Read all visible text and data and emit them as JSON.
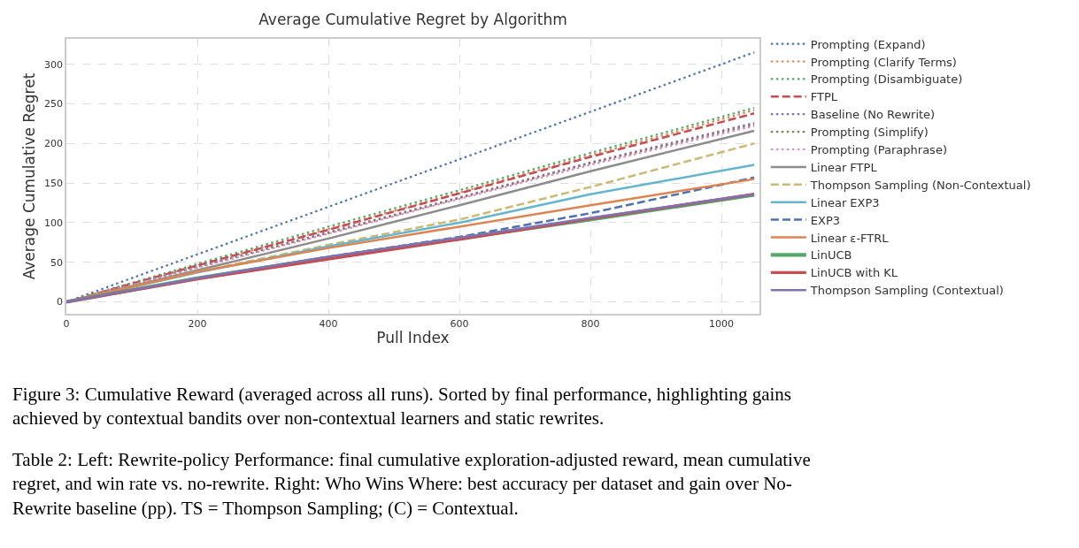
{
  "chart_data": {
    "type": "line",
    "title": "Average Cumulative Regret by Algorithm",
    "xlabel": "Pull Index",
    "ylabel": "Average Cumulative Regret",
    "x": [
      0,
      200,
      400,
      600,
      800,
      1050
    ],
    "series": [
      {
        "name": "Prompting (Expand)",
        "color": "#4c72b0",
        "line_style": "dotted",
        "values": [
          0,
          60,
          120,
          180,
          240,
          315
        ]
      },
      {
        "name": "Prompting (Clarify Terms)",
        "color": "#dd8452",
        "line_style": "dotted",
        "values": [
          0,
          46,
          92,
          138,
          185,
          242
        ]
      },
      {
        "name": "Prompting (Disambiguate)",
        "color": "#55a868",
        "line_style": "dotted",
        "values": [
          0,
          48,
          95,
          141,
          188,
          245
        ]
      },
      {
        "name": "FTPL",
        "color": "#c44e52",
        "line_style": "dashed",
        "values": [
          0,
          46,
          91,
          137,
          183,
          238
        ]
      },
      {
        "name": "Baseline (No Rewrite)",
        "color": "#8172b3",
        "line_style": "dotted",
        "values": [
          0,
          44,
          88,
          132,
          176,
          226
        ]
      },
      {
        "name": "Prompting (Simplify)",
        "color": "#937860",
        "line_style": "dotted",
        "values": [
          0,
          44,
          87,
          131,
          175,
          224
        ]
      },
      {
        "name": "Prompting (Paraphrase)",
        "color": "#da8bc3",
        "line_style": "dotted",
        "values": [
          0,
          43,
          86,
          130,
          173,
          222
        ]
      },
      {
        "name": "Linear FTPL",
        "color": "#8c8c8c",
        "line_style": "solid",
        "values": [
          0,
          40,
          80,
          122,
          165,
          216
        ]
      },
      {
        "name": "Thompson Sampling (Non-Contextual)",
        "color": "#ccb974",
        "line_style": "dashed",
        "values": [
          0,
          38,
          72,
          104,
          145,
          200
        ]
      },
      {
        "name": "Linear EXP3",
        "color": "#64b5cd",
        "line_style": "solid",
        "values": [
          0,
          37,
          70,
          100,
          136,
          173
        ]
      },
      {
        "name": "EXP3",
        "color": "#4c72b0",
        "line_style": "dashed",
        "values": [
          0,
          30,
          57,
          82,
          112,
          157
        ]
      },
      {
        "name": "Linear ε-FTRL",
        "color": "#dd8452",
        "line_style": "solid",
        "values": [
          0,
          38,
          68,
          95,
          122,
          155
        ]
      },
      {
        "name": "LinUCB",
        "color": "#55a868",
        "line_style": "solid",
        "values": [
          0,
          30,
          56,
          80,
          104,
          135
        ]
      },
      {
        "name": "LinUCB with KL",
        "color": "#c44e52",
        "line_style": "solid",
        "values": [
          0,
          29,
          54,
          79,
          105,
          136
        ]
      },
      {
        "name": "Thompson Sampling (Contextual)",
        "color": "#8172b3",
        "line_style": "solid",
        "values": [
          0,
          30,
          57,
          81,
          106,
          136
        ]
      }
    ],
    "xlim": [
      0,
      1058
    ],
    "ylim": [
      -15,
      332
    ],
    "xticks": [
      0,
      200,
      400,
      600,
      800,
      1000
    ],
    "yticks": [
      0,
      50,
      100,
      150,
      200,
      250,
      300
    ],
    "grid": true,
    "legend": "right",
    "annotations": [
      "Figure 3: Cumulative Reward (averaged across all runs). Sorted by final performance, highlighting gains achieved by contextual bandits over non-contextual learners and static rewrites.",
      "Table 2: Left: Rewrite-policy Performance: final cumulative exploration-adjusted reward, mean cumulative regret, and win rate vs. no-rewrite. Right: Who Wins Where: best accuracy per dataset and gain over No-Rewrite baseline (pp). TS = Thompson Sampling; (C) = Contextual."
    ]
  }
}
